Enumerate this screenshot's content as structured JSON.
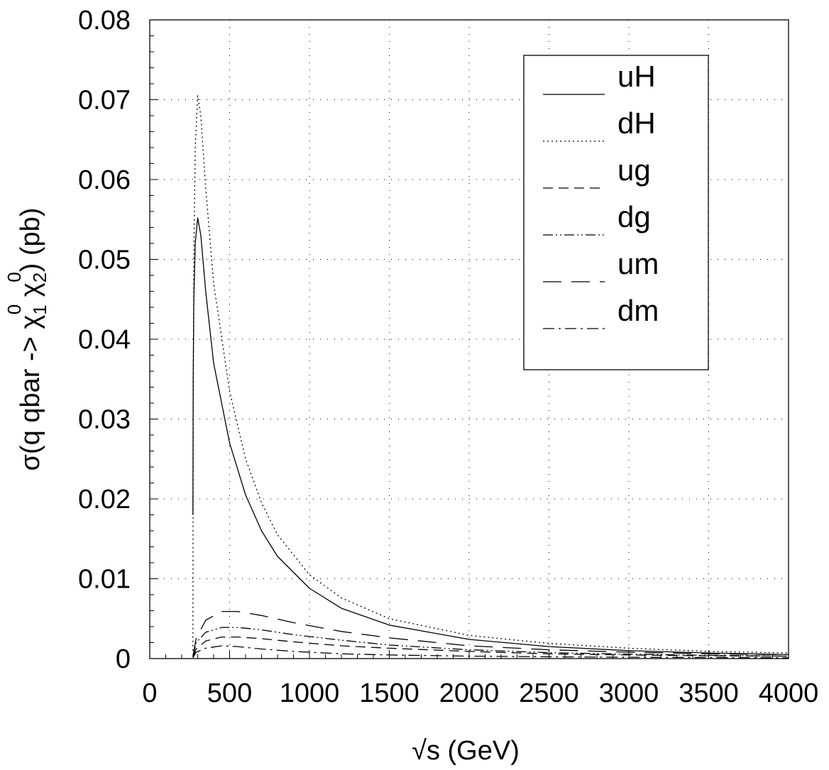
{
  "chart_data": {
    "type": "line",
    "title": "",
    "xlabel": "√s (GeV)",
    "ylabel": {
      "prefix": "σ(q qbar -> χ",
      "chi1_sub": "1",
      "chi1_sup": "0",
      "chi2": " χ",
      "chi2_sub": "2",
      "chi2_sup": "0",
      "suffix": ") (pb)"
    },
    "xlim": [
      0,
      4000
    ],
    "ylim": [
      0,
      0.08
    ],
    "xticks": [
      "0",
      "500",
      "1000",
      "1500",
      "2000",
      "2500",
      "3000",
      "3500",
      "4000"
    ],
    "yticks": [
      "0",
      "0.01",
      "0.02",
      "0.03",
      "0.04",
      "0.05",
      "0.06",
      "0.07",
      "0.08"
    ],
    "grid": "dotted",
    "legend_position": "top-right",
    "series": [
      {
        "name": "uH",
        "style": "solid",
        "points": [
          [
            270,
            0.018
          ],
          [
            272,
            0.035
          ],
          [
            276,
            0.045
          ],
          [
            285,
            0.052
          ],
          [
            300,
            0.0552
          ],
          [
            320,
            0.053
          ],
          [
            350,
            0.046
          ],
          [
            400,
            0.037
          ],
          [
            500,
            0.027
          ],
          [
            600,
            0.0205
          ],
          [
            700,
            0.016
          ],
          [
            800,
            0.0128
          ],
          [
            1000,
            0.0088
          ],
          [
            1200,
            0.0063
          ],
          [
            1500,
            0.0042
          ],
          [
            2000,
            0.0024
          ],
          [
            2500,
            0.0015
          ],
          [
            3000,
            0.001
          ],
          [
            3500,
            0.0007
          ],
          [
            4000,
            0.0005
          ]
        ]
      },
      {
        "name": "dH",
        "style": "dotted",
        "points": [
          [
            270,
            0.001
          ],
          [
            272,
            0.03
          ],
          [
            276,
            0.05
          ],
          [
            285,
            0.064
          ],
          [
            300,
            0.0705
          ],
          [
            320,
            0.068
          ],
          [
            350,
            0.059
          ],
          [
            400,
            0.047
          ],
          [
            500,
            0.0335
          ],
          [
            600,
            0.025
          ],
          [
            700,
            0.0195
          ],
          [
            800,
            0.0155
          ],
          [
            1000,
            0.0105
          ],
          [
            1200,
            0.0076
          ],
          [
            1500,
            0.005
          ],
          [
            2000,
            0.0029
          ],
          [
            2500,
            0.0019
          ],
          [
            3000,
            0.0013
          ],
          [
            3500,
            0.0009
          ],
          [
            4000,
            0.0007
          ]
        ]
      },
      {
        "name": "ug",
        "style": "dashed",
        "points": [
          [
            270,
            0.0002
          ],
          [
            290,
            0.0012
          ],
          [
            350,
            0.0022
          ],
          [
            450,
            0.0027
          ],
          [
            550,
            0.0027
          ],
          [
            700,
            0.0025
          ],
          [
            900,
            0.0021
          ],
          [
            1200,
            0.0016
          ],
          [
            1500,
            0.0013
          ],
          [
            2000,
            0.0009
          ],
          [
            2500,
            0.0006
          ],
          [
            3000,
            0.00045
          ],
          [
            3500,
            0.00035
          ],
          [
            4000,
            0.0003
          ]
        ]
      },
      {
        "name": "dg",
        "style": "dash-dot-dot",
        "points": [
          [
            270,
            0.0003
          ],
          [
            290,
            0.002
          ],
          [
            350,
            0.0033
          ],
          [
            450,
            0.0039
          ],
          [
            550,
            0.0039
          ],
          [
            700,
            0.0036
          ],
          [
            900,
            0.003
          ],
          [
            1200,
            0.0023
          ],
          [
            1500,
            0.0017
          ],
          [
            2000,
            0.0011
          ],
          [
            2500,
            0.00075
          ],
          [
            3000,
            0.00055
          ],
          [
            3500,
            0.0004
          ],
          [
            4000,
            0.0003
          ]
        ]
      },
      {
        "name": "um",
        "style": "long-dash",
        "points": [
          [
            270,
            0.0003
          ],
          [
            290,
            0.0025
          ],
          [
            350,
            0.0048
          ],
          [
            450,
            0.0059
          ],
          [
            550,
            0.0059
          ],
          [
            700,
            0.0054
          ],
          [
            900,
            0.0045
          ],
          [
            1200,
            0.0034
          ],
          [
            1500,
            0.0026
          ],
          [
            2000,
            0.0016
          ],
          [
            2500,
            0.0011
          ],
          [
            3000,
            0.0008
          ],
          [
            3500,
            0.0006
          ],
          [
            4000,
            0.0005
          ]
        ]
      },
      {
        "name": "dm",
        "style": "dash-dot",
        "points": [
          [
            270,
            0.0001
          ],
          [
            290,
            0.0008
          ],
          [
            350,
            0.0013
          ],
          [
            450,
            0.0016
          ],
          [
            550,
            0.0015
          ],
          [
            700,
            0.0012
          ],
          [
            900,
            0.0009
          ],
          [
            1200,
            0.0006
          ],
          [
            1500,
            0.00045
          ],
          [
            2000,
            0.0003
          ],
          [
            2500,
            0.00022
          ],
          [
            3000,
            0.00017
          ],
          [
            3500,
            0.00013
          ],
          [
            4000,
            0.0001
          ]
        ]
      }
    ]
  }
}
